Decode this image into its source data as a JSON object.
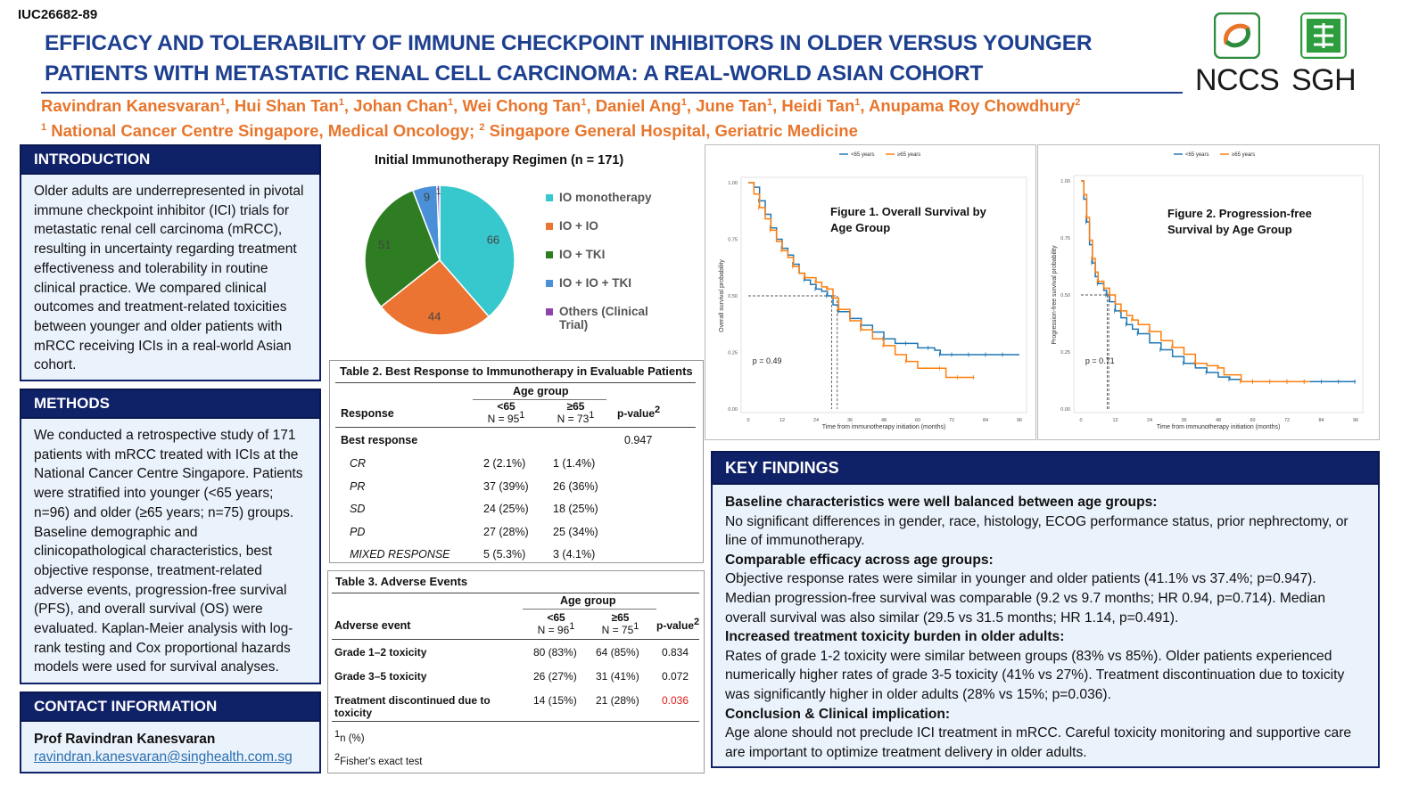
{
  "header": {
    "code": "IUC26682-89",
    "title_line1": "EFFICACY AND TOLERABILITY OF IMMUNE CHECKPOINT INHIBITORS IN OLDER VERSUS YOUNGER",
    "title_line2": "PATIENTS WITH METASTATIC RENAL CELL CARCINOMA: A REAL-WORLD ASIAN COHORT",
    "authors": [
      {
        "name": "Ravindran Kanesvaran",
        "sup": "1"
      },
      {
        "name": "Hui Shan Tan",
        "sup": "1"
      },
      {
        "name": "Johan Chan",
        "sup": "1"
      },
      {
        "name": "Wei Chong Tan",
        "sup": "1"
      },
      {
        "name": "Daniel Ang",
        "sup": "1"
      },
      {
        "name": "June Tan",
        "sup": "1"
      },
      {
        "name": "Heidi Tan",
        "sup": "1"
      },
      {
        "name": "Anupama Roy Chowdhury",
        "sup": "2"
      }
    ],
    "affil_sup1": "1",
    "affil1": "National Cancer Centre Singapore, Medical Oncology;",
    "affil_sup2": "2",
    "affil2": "Singapore General Hospital, Geriatric Medicine",
    "logo1": "NCCS",
    "logo2": "SGH",
    "colors": {
      "title": "#1d3f8f",
      "authors": "#e8752b",
      "section": "#0f2167",
      "box": "#eaf2fb"
    }
  },
  "introduction": {
    "heading": "INTRODUCTION",
    "text": "Older adults are underrepresented in pivotal immune checkpoint inhibitor (ICI) trials for metastatic renal cell carcinoma (mRCC), resulting in uncertainty regarding treatment effectiveness and tolerability in routine clinical practice. We compared clinical outcomes and treatment-related toxicities between younger and older patients with mRCC receiving ICIs in a real-world Asian cohort."
  },
  "methods": {
    "heading": "METHODS",
    "text": "We conducted a retrospective study of 171 patients with mRCC treated with ICIs at the National Cancer Centre Singapore. Patients were stratified into younger (<65 years; n=96) and older (≥65 years; n=75) groups. Baseline demographic and clinicopathological characteristics, best objective response, treatment-related adverse events, progression-free survival (PFS), and overall survival (OS) were evaluated. Kaplan-Meier analysis with log-rank testing and Cox proportional hazards models were used for survival analyses."
  },
  "contact": {
    "heading": "CONTACT INFORMATION",
    "name": "Prof Ravindran Kanesvaran",
    "email": "ravindran.kanesvaran@singhealth.com.sg"
  },
  "chart_data": [
    {
      "type": "pie",
      "title": "Initial Immunotherapy Regimen (n = 171)",
      "categories": [
        "IO monotherapy",
        "IO + IO",
        "IO + TKI",
        "IO + IO + TKI",
        "Others (Clinical Trial)"
      ],
      "values": [
        66,
        44,
        51,
        9,
        1
      ],
      "data_labels": [
        "66",
        "44",
        "51",
        "9",
        "1"
      ],
      "colors": [
        "#36c8cc",
        "#ec7433",
        "#2e7d22",
        "#4a90d9",
        "#8e44ad"
      ],
      "legend": "right"
    },
    {
      "type": "line",
      "title": "Figure 1. Overall Survival by Age Group",
      "ylabel": "Overall survival probability",
      "xlabel": "Time from immunotherapy initiation (months)",
      "xticks": [
        "0",
        "12",
        "24",
        "36",
        "48",
        "60",
        "72",
        "84",
        "96"
      ],
      "yticks": [
        "0.00",
        "0.25",
        "0.50",
        "0.75",
        "1.00"
      ],
      "xlim": [
        0,
        96
      ],
      "ylim": [
        0,
        1
      ],
      "annotation": "p = 0.49",
      "medians": [
        29.5,
        31.5
      ],
      "series": [
        {
          "name": "<65 years",
          "color": "#1f77b4",
          "points": [
            [
              0,
              1.0
            ],
            [
              2,
              0.98
            ],
            [
              4,
              0.92
            ],
            [
              6,
              0.86
            ],
            [
              8,
              0.8
            ],
            [
              10,
              0.75
            ],
            [
              12,
              0.71
            ],
            [
              14,
              0.68
            ],
            [
              16,
              0.64
            ],
            [
              18,
              0.6
            ],
            [
              20,
              0.57
            ],
            [
              22,
              0.55
            ],
            [
              24,
              0.53
            ],
            [
              26,
              0.52
            ],
            [
              28,
              0.5
            ],
            [
              30,
              0.46
            ],
            [
              32,
              0.43
            ],
            [
              36,
              0.4
            ],
            [
              40,
              0.37
            ],
            [
              44,
              0.34
            ],
            [
              48,
              0.31
            ],
            [
              52,
              0.29
            ],
            [
              56,
              0.29
            ],
            [
              60,
              0.27
            ],
            [
              64,
              0.27
            ],
            [
              66,
              0.26
            ],
            [
              68,
              0.24
            ],
            [
              96,
              0.24
            ]
          ]
        },
        {
          "name": "≥65 years",
          "color": "#ff7f0e",
          "points": [
            [
              0,
              1.0
            ],
            [
              2,
              0.95
            ],
            [
              4,
              0.89
            ],
            [
              6,
              0.84
            ],
            [
              8,
              0.79
            ],
            [
              10,
              0.74
            ],
            [
              12,
              0.7
            ],
            [
              14,
              0.67
            ],
            [
              16,
              0.63
            ],
            [
              18,
              0.6
            ],
            [
              20,
              0.58
            ],
            [
              22,
              0.58
            ],
            [
              24,
              0.56
            ],
            [
              26,
              0.54
            ],
            [
              28,
              0.53
            ],
            [
              30,
              0.49
            ],
            [
              32,
              0.44
            ],
            [
              36,
              0.39
            ],
            [
              40,
              0.35
            ],
            [
              44,
              0.31
            ],
            [
              48,
              0.28
            ],
            [
              52,
              0.24
            ],
            [
              56,
              0.21
            ],
            [
              60,
              0.18
            ],
            [
              68,
              0.18
            ],
            [
              70,
              0.14
            ],
            [
              80,
              0.14
            ]
          ]
        }
      ],
      "legend": "top"
    },
    {
      "type": "line",
      "title": "Figure 2. Progression-free Survival by Age Group",
      "ylabel": "Progression-free survival probability",
      "xlabel": "Time from immunotherapy initiation (months)",
      "xticks": [
        "0",
        "12",
        "24",
        "36",
        "48",
        "60",
        "72",
        "84",
        "96"
      ],
      "yticks": [
        "0.00",
        "0.25",
        "0.50",
        "0.75",
        "1.00"
      ],
      "xlim": [
        0,
        96
      ],
      "ylim": [
        0,
        1
      ],
      "annotation": "p = 0.71",
      "medians": [
        9.2,
        9.7
      ],
      "series": [
        {
          "name": "<65 years",
          "color": "#1f77b4",
          "points": [
            [
              0,
              1.0
            ],
            [
              1,
              0.92
            ],
            [
              2,
              0.82
            ],
            [
              3,
              0.72
            ],
            [
              4,
              0.64
            ],
            [
              5,
              0.58
            ],
            [
              6,
              0.55
            ],
            [
              8,
              0.52
            ],
            [
              9,
              0.5
            ],
            [
              10,
              0.47
            ],
            [
              12,
              0.43
            ],
            [
              14,
              0.4
            ],
            [
              16,
              0.37
            ],
            [
              18,
              0.35
            ],
            [
              20,
              0.33
            ],
            [
              24,
              0.29
            ],
            [
              28,
              0.26
            ],
            [
              32,
              0.23
            ],
            [
              36,
              0.2
            ],
            [
              40,
              0.18
            ],
            [
              44,
              0.16
            ],
            [
              48,
              0.14
            ],
            [
              52,
              0.13
            ],
            [
              56,
              0.12
            ],
            [
              96,
              0.12
            ]
          ]
        },
        {
          "name": "≥65 years",
          "color": "#ff7f0e",
          "points": [
            [
              0,
              1.0
            ],
            [
              1,
              0.94
            ],
            [
              2,
              0.84
            ],
            [
              3,
              0.74
            ],
            [
              4,
              0.66
            ],
            [
              5,
              0.6
            ],
            [
              6,
              0.56
            ],
            [
              8,
              0.53
            ],
            [
              10,
              0.5
            ],
            [
              12,
              0.46
            ],
            [
              14,
              0.43
            ],
            [
              16,
              0.41
            ],
            [
              18,
              0.39
            ],
            [
              20,
              0.37
            ],
            [
              24,
              0.34
            ],
            [
              28,
              0.3
            ],
            [
              32,
              0.27
            ],
            [
              36,
              0.24
            ],
            [
              40,
              0.2
            ],
            [
              44,
              0.19
            ],
            [
              48,
              0.18
            ],
            [
              50,
              0.15
            ],
            [
              56,
              0.12
            ],
            [
              80,
              0.12
            ]
          ]
        }
      ],
      "legend": "top"
    }
  ],
  "legend_labels": [
    "<65 years",
    "≥65 years"
  ],
  "table2": {
    "title": "Table 2. Best Response to Immunotherapy in Evaluable Patients",
    "group_header": "Age group",
    "col_response": "Response",
    "col_young": "<65",
    "col_young_n": "N = 95",
    "col_old": "≥65",
    "col_old_n": "N = 73",
    "n_sup": "1",
    "col_p": "p-value",
    "p_sup": "2",
    "section_label": "Best response",
    "section_p": "0.947",
    "rows": [
      {
        "label": "CR",
        "young": "2 (2.1%)",
        "old": "1 (1.4%)"
      },
      {
        "label": "PR",
        "young": "37 (39%)",
        "old": "26 (36%)"
      },
      {
        "label": "SD",
        "young": "24 (25%)",
        "old": "18 (25%)"
      },
      {
        "label": "PD",
        "young": "27 (28%)",
        "old": "25 (34%)"
      },
      {
        "label": "MIXED RESPONSE",
        "young": "5 (5.3%)",
        "old": "3 (4.1%)"
      }
    ]
  },
  "table3": {
    "title": "Table 3. Adverse Events",
    "group_header": "Age group",
    "col_event": "Adverse event",
    "col_young": "<65",
    "col_young_n": "N = 96",
    "col_old": "≥65",
    "col_old_n": "N = 75",
    "n_sup": "1",
    "col_p": "p-value",
    "p_sup": "2",
    "rows": [
      {
        "label": "Grade 1–2 toxicity",
        "young": "80 (83%)",
        "old": "64 (85%)",
        "p": "0.834",
        "sig": false
      },
      {
        "label": "Grade 3–5 toxicity",
        "young": "26 (27%)",
        "old": "31 (41%)",
        "p": "0.072",
        "sig": false
      },
      {
        "label": "Treatment discontinued due to toxicity",
        "young": "14 (15%)",
        "old": "21 (28%)",
        "p": "0.036",
        "sig": true
      }
    ],
    "foot1_sup": "1",
    "foot1": "n (%)",
    "foot2_sup": "2",
    "foot2": "Fisher's exact test"
  },
  "key_findings": {
    "heading": "KEY FINDINGS",
    "blocks": [
      {
        "h": "Baseline characteristics were well balanced between age groups:",
        "t": "No significant differences in gender, race, histology, ECOG performance status, prior nephrectomy, or line of immunotherapy."
      },
      {
        "h": "Comparable efficacy across age groups:",
        "t": "Objective response rates were similar in younger and older patients (41.1% vs 37.4%; p=0.947). Median progression-free survival was comparable (9.2 vs 9.7 months; HR 0.94, p=0.714). Median overall survival was also similar (29.5 vs 31.5 months; HR 1.14, p=0.491)."
      },
      {
        "h": "Increased treatment toxicity burden in older adults:",
        "t": "Rates of grade 1-2 toxicity were similar between groups (83% vs 85%). Older patients experienced numerically higher rates of grade 3-5 toxicity (41% vs 27%). Treatment discontinuation due to toxicity was significantly higher in older adults (28% vs 15%; p=0.036)."
      },
      {
        "h": "Conclusion & Clinical implication:",
        "t": "Age alone should not preclude ICI treatment in mRCC. Careful toxicity monitoring and supportive care are important to optimize treatment delivery in older adults."
      }
    ]
  }
}
